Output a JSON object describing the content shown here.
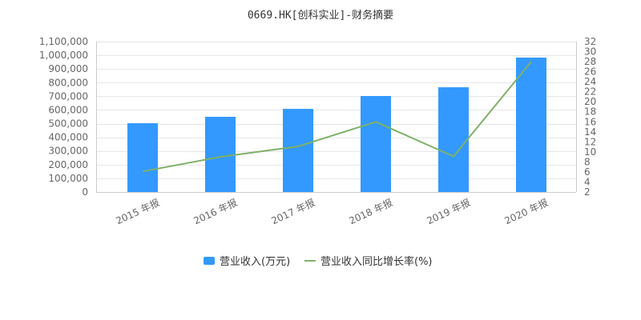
{
  "title": "0669.HK[创科实业]-财务摘要",
  "colors": {
    "bar": "#3399ff",
    "line": "#7fb069",
    "grid": "#e6e6e6",
    "axis": "#cccccc",
    "text": "#666666"
  },
  "legend": {
    "items": [
      {
        "label": "营业收入(万元)",
        "symbol": "bar",
        "color": "#3399ff"
      },
      {
        "label": "营业收入同比增长率(%)",
        "symbol": "line",
        "color": "#7fb069"
      }
    ]
  },
  "chart_data": {
    "type": "bar",
    "title": "0669.HK[创科实业]-财务摘要",
    "categories": [
      "2015 年报",
      "2016 年报",
      "2017 年报",
      "2018 年报",
      "2019 年报",
      "2020 年报"
    ],
    "series": [
      {
        "name": "营业收入(万元)",
        "type": "bar",
        "axis": "left",
        "values": [
          503000,
          550000,
          608000,
          702000,
          766000,
          983000
        ]
      },
      {
        "name": "营业收入同比增长率(%)",
        "type": "line",
        "axis": "right",
        "values": [
          6.1,
          9.0,
          11.1,
          16.0,
          9.1,
          28.0
        ]
      }
    ],
    "y_left": {
      "min": 0,
      "max": 1100000,
      "step": 100000,
      "ticks": [
        "0",
        "100,000",
        "200,000",
        "300,000",
        "400,000",
        "500,000",
        "600,000",
        "700,000",
        "800,000",
        "900,000",
        "1,000,000",
        "1,100,000"
      ]
    },
    "y_right": {
      "min": 2,
      "max": 32,
      "step": 2,
      "ticks": [
        "2",
        "4",
        "6",
        "8",
        "10",
        "12",
        "14",
        "16",
        "18",
        "20",
        "22",
        "24",
        "26",
        "28",
        "30",
        "32"
      ]
    },
    "xlabel": "",
    "ylabel": "",
    "grid": true,
    "legend_position": "bottom"
  }
}
